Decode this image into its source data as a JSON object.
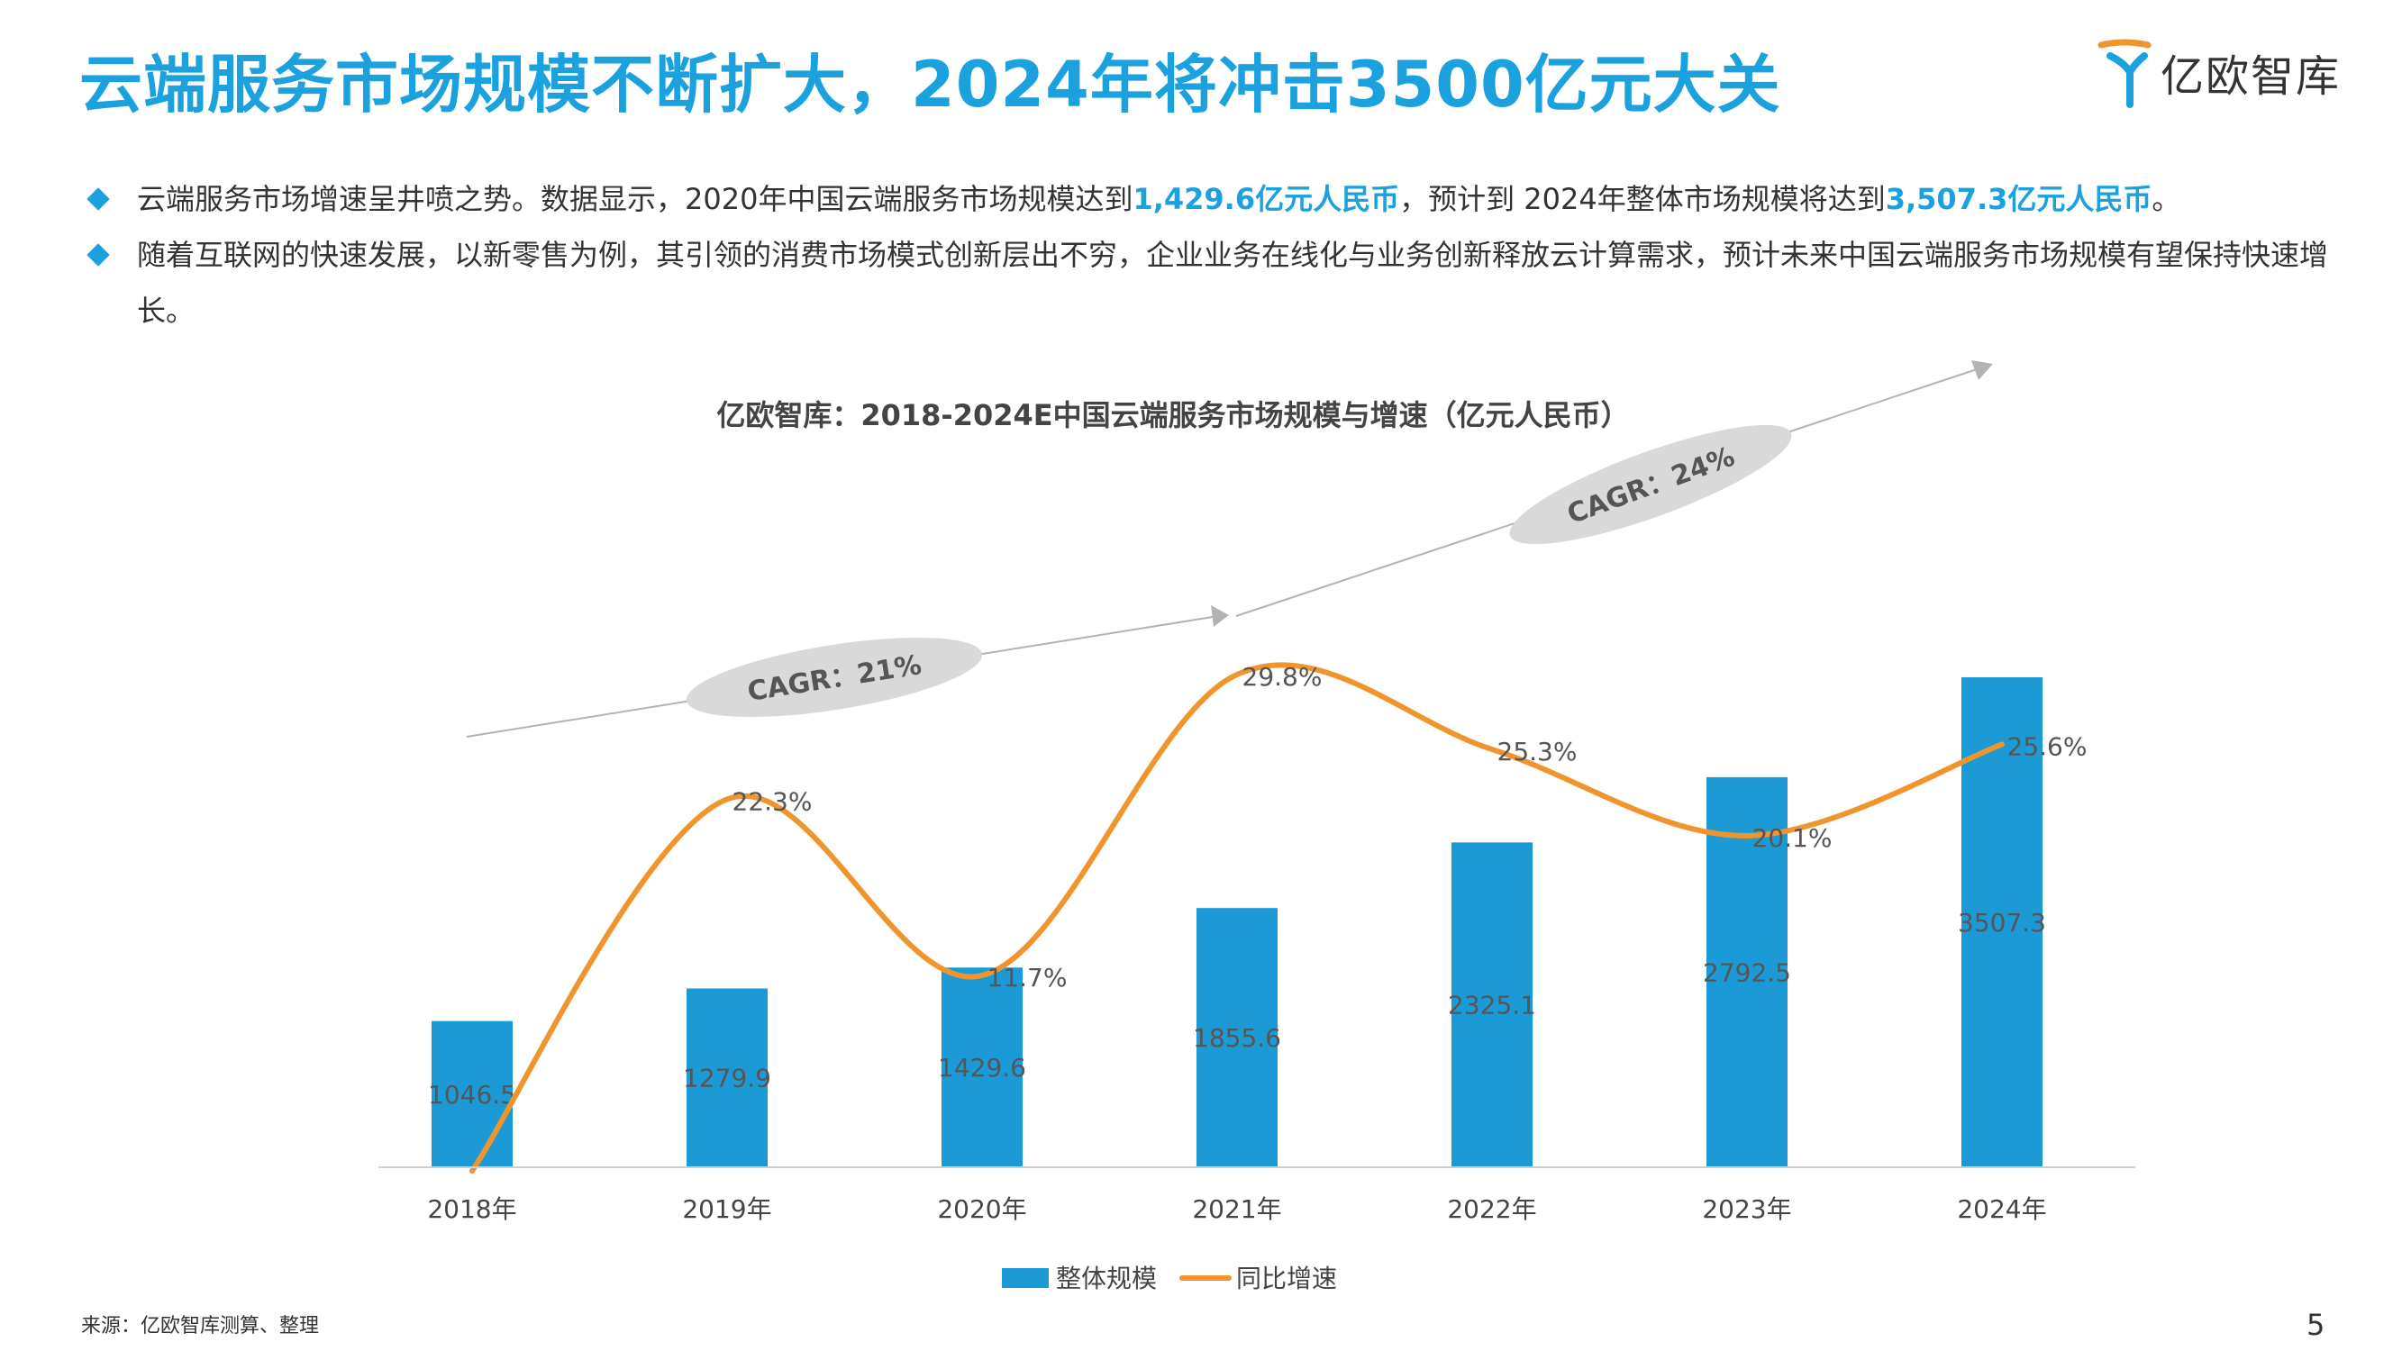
{
  "header": {
    "title": "云端服务市场规模不断扩大，2024年将冲击3500亿元大关",
    "logo_text": "亿欧智库"
  },
  "bullets": [
    {
      "t1": "云端服务市场增速呈井喷之势。数据显示，2020年中国云端服务市场规模达到",
      "h1": "1,429.6亿元人民币",
      "t2": "，预计到 2024年整体市场规模将达到",
      "h2": "3,507.3亿元人民币",
      "t3": "。"
    },
    {
      "t1": "随着互联网的快速发展，以新零售为例，其引领的消费市场模式创新层出不穷，企业业务在线化与业务创新释放云计算需求，预计未来中国云端服务市场规模有望保持快速增长。"
    }
  ],
  "chart_data": {
    "type": "bar",
    "title": "亿欧智库：2018-2024E中国云端服务市场规模与增速（亿元人民币）",
    "categories": [
      "2018年",
      "2019年",
      "2020年",
      "2021年",
      "2022年",
      "2023年",
      "2024年"
    ],
    "series": [
      {
        "name": "整体规模",
        "type": "bar",
        "values": [
          1046.5,
          1279.9,
          1429.6,
          1855.6,
          2325.1,
          2792.5,
          3507.3
        ],
        "labels": [
          "1046.5",
          "1279.9",
          "1429.6",
          "1855.6",
          "2325.1",
          "2792.5",
          "3507.3"
        ],
        "color": "#1b9ad6"
      },
      {
        "name": "同比增速",
        "type": "line",
        "values": [
          null,
          22.3,
          11.7,
          29.8,
          25.3,
          20.1,
          25.6
        ],
        "labels": [
          "",
          "22.3%",
          "11.7%",
          "29.8%",
          "25.3%",
          "20.1%",
          "25.6%"
        ],
        "color": "#f0952e"
      }
    ],
    "annotations": [
      {
        "text": "CAGR：21%"
      },
      {
        "text": "CAGR：24%"
      }
    ],
    "legend_position": "bottom-center",
    "grid": false
  },
  "footer": {
    "source": "来源：亿欧智库测算、整理",
    "page_number": "5"
  }
}
